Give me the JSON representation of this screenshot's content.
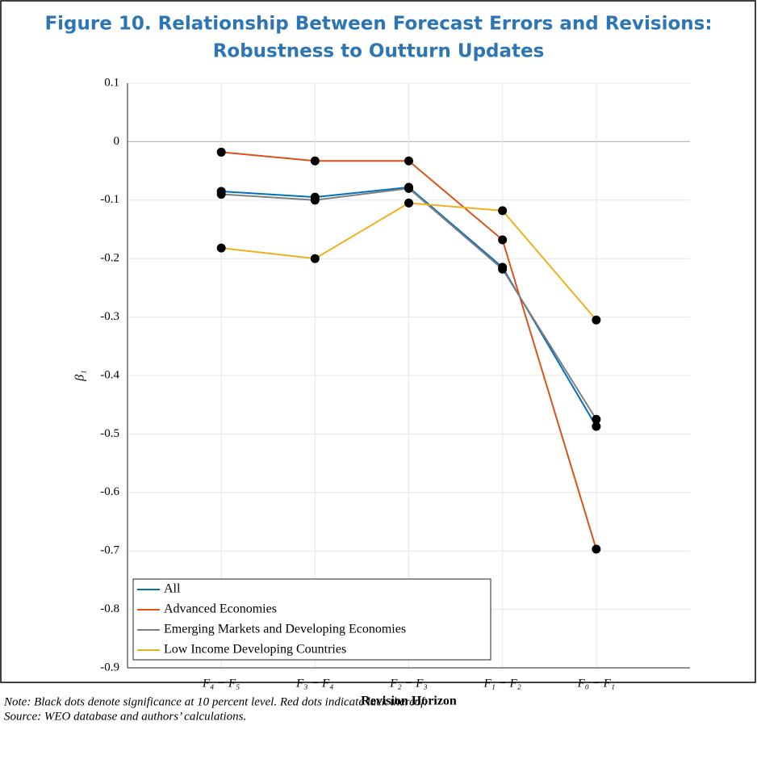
{
  "chart_data": {
    "type": "line",
    "title": "Figure 10. Relationship Between Forecast Errors and Revisions:",
    "subtitle": "Robustness to Outturn Updates",
    "x_label": "Revision Horizon",
    "y_label": "β₁",
    "categories": [
      "F₄ − F₅",
      "F₃ − F₄",
      "F₂ − F₃",
      "F₁ − F₂",
      "F₀ − F₁"
    ],
    "series": [
      {
        "name": "All",
        "color": "#0072bd",
        "values": [
          -0.085,
          -0.095,
          -0.078,
          -0.215,
          -0.487
        ]
      },
      {
        "name": "Advanced Economies",
        "color": "#d95319",
        "values": [
          -0.018,
          -0.033,
          -0.033,
          -0.168,
          -0.697
        ]
      },
      {
        "name": "Emerging Markets and Developing Economies",
        "color": "#7f7f7f",
        "values": [
          -0.09,
          -0.1,
          -0.08,
          -0.218,
          -0.475
        ]
      },
      {
        "name": "Low Income Developing Countries",
        "color": "#edb120",
        "values": [
          -0.182,
          -0.2,
          -0.105,
          -0.118,
          -0.305
        ]
      }
    ],
    "marker_color": "#000000",
    "ylim": [
      -0.9,
      0.1
    ],
    "yticks": [
      0.1,
      0,
      -0.1,
      -0.2,
      -0.3,
      -0.4,
      -0.5,
      -0.6,
      -0.7,
      -0.8,
      -0.9
    ],
    "grid": true,
    "legend_position": "lower-left",
    "notes": [
      "Note: Black dots denote significance at 10 percent level. Red dots indicate lack thereof.",
      "Source: WEO database and authors’ calculations."
    ]
  }
}
